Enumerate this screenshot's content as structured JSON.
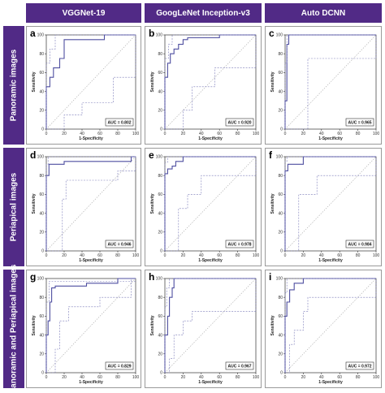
{
  "columns": [
    "VGGNet-19",
    "GoogLeNet Inception-v3",
    "Auto DCNN"
  ],
  "rows": [
    "Panoramic images",
    "Periapical images",
    "Panoramic and Periapical images"
  ],
  "colors": {
    "header_bg": "#512a86",
    "roc": "#4f4fa0",
    "ci": "#7a7ab8",
    "diagonal": "#aaaaaa"
  },
  "chart_data": [
    {
      "type": "line",
      "panel": "a",
      "xlabel": "1-Specificity",
      "ylabel": "Sensitivity",
      "xlim": [
        0,
        100
      ],
      "ylim": [
        0,
        100
      ],
      "xticks": [
        0,
        20,
        40,
        60,
        80,
        100
      ],
      "yticks": [
        0,
        20,
        40,
        60,
        80,
        100
      ],
      "auc_label": "AUC = 0.802",
      "series": [
        {
          "role": "roc",
          "x": [
            0,
            0,
            4,
            4,
            8,
            8,
            15,
            15,
            20,
            20,
            65,
            65,
            100
          ],
          "y": [
            0,
            45,
            45,
            55,
            55,
            65,
            65,
            75,
            75,
            95,
            95,
            100,
            100
          ]
        },
        {
          "role": "ci_upper",
          "x": [
            0,
            0,
            4,
            4,
            10,
            10,
            100
          ],
          "y": [
            0,
            70,
            70,
            85,
            85,
            100,
            100
          ]
        },
        {
          "role": "ci_lower",
          "x": [
            0,
            20,
            20,
            40,
            40,
            75,
            75,
            100,
            100
          ],
          "y": [
            0,
            0,
            15,
            15,
            28,
            28,
            55,
            55,
            100
          ]
        }
      ]
    },
    {
      "type": "line",
      "panel": "b",
      "xlabel": "1-Specificity",
      "ylabel": "Sensitivity",
      "xlim": [
        0,
        100
      ],
      "ylim": [
        0,
        100
      ],
      "xticks": [
        0,
        20,
        40,
        60,
        80,
        100
      ],
      "yticks": [
        0,
        20,
        40,
        60,
        80,
        100
      ],
      "auc_label": "AUC = 0.920",
      "series": [
        {
          "role": "roc",
          "x": [
            0,
            0,
            3,
            3,
            6,
            6,
            10,
            10,
            15,
            15,
            20,
            20,
            25,
            25,
            60,
            60,
            100
          ],
          "y": [
            0,
            55,
            55,
            70,
            70,
            80,
            80,
            85,
            85,
            90,
            90,
            95,
            95,
            97,
            97,
            100,
            100
          ]
        },
        {
          "role": "ci_upper",
          "x": [
            0,
            0,
            4,
            4,
            8,
            8,
            100
          ],
          "y": [
            0,
            75,
            75,
            90,
            90,
            100,
            100
          ]
        },
        {
          "role": "ci_lower",
          "x": [
            0,
            20,
            20,
            30,
            30,
            55,
            55,
            100,
            100
          ],
          "y": [
            0,
            0,
            20,
            20,
            45,
            45,
            65,
            65,
            100
          ]
        }
      ]
    },
    {
      "type": "line",
      "panel": "c",
      "xlabel": "1-Specificity",
      "ylabel": "Sensitivity",
      "xlim": [
        0,
        100
      ],
      "ylim": [
        0,
        100
      ],
      "xticks": [
        0,
        20,
        40,
        60,
        80,
        100
      ],
      "yticks": [
        0,
        20,
        40,
        60,
        80,
        100
      ],
      "auc_label": "AUC = 0.965",
      "series": [
        {
          "role": "roc",
          "x": [
            0,
            0,
            2,
            2,
            4,
            4,
            100
          ],
          "y": [
            0,
            30,
            30,
            90,
            90,
            100,
            100
          ]
        },
        {
          "role": "ci_upper",
          "x": [
            0,
            0,
            2,
            2,
            100
          ],
          "y": [
            0,
            70,
            70,
            100,
            100
          ]
        },
        {
          "role": "ci_lower",
          "x": [
            0,
            25,
            25,
            100,
            100
          ],
          "y": [
            0,
            0,
            75,
            75,
            100
          ]
        }
      ]
    },
    {
      "type": "line",
      "panel": "d",
      "xlabel": "1-Specificity",
      "ylabel": "Sensitivity",
      "xlim": [
        0,
        100
      ],
      "ylim": [
        0,
        100
      ],
      "xticks": [
        0,
        20,
        40,
        60,
        80,
        100
      ],
      "yticks": [
        0,
        20,
        40,
        60,
        80,
        100
      ],
      "auc_label": "AUC = 0.946",
      "series": [
        {
          "role": "roc",
          "x": [
            0,
            0,
            3,
            3,
            20,
            20,
            95,
            95,
            100
          ],
          "y": [
            0,
            80,
            80,
            92,
            92,
            95,
            95,
            100,
            100
          ]
        },
        {
          "role": "ci_upper",
          "x": [
            0,
            0,
            2,
            2,
            100
          ],
          "y": [
            0,
            92,
            92,
            100,
            100
          ]
        },
        {
          "role": "ci_lower",
          "x": [
            0,
            18,
            18,
            22,
            22,
            80,
            80,
            100,
            100
          ],
          "y": [
            0,
            0,
            55,
            55,
            75,
            75,
            85,
            85,
            100
          ]
        }
      ]
    },
    {
      "type": "line",
      "panel": "e",
      "xlabel": "1-Specificity",
      "ylabel": "Sensitivity",
      "xlim": [
        0,
        100
      ],
      "ylim": [
        0,
        100
      ],
      "xticks": [
        0,
        20,
        40,
        60,
        80,
        100
      ],
      "yticks": [
        0,
        20,
        40,
        60,
        80,
        100
      ],
      "auc_label": "AUC = 0.978",
      "series": [
        {
          "role": "roc",
          "x": [
            0,
            0,
            3,
            3,
            8,
            8,
            12,
            12,
            20,
            20,
            100
          ],
          "y": [
            0,
            82,
            82,
            87,
            87,
            90,
            90,
            95,
            95,
            100,
            100
          ]
        },
        {
          "role": "ci_upper",
          "x": [
            0,
            0,
            3,
            3,
            100
          ],
          "y": [
            0,
            94,
            94,
            100,
            100
          ]
        },
        {
          "role": "ci_lower",
          "x": [
            0,
            15,
            15,
            25,
            25,
            40,
            40,
            100,
            100
          ],
          "y": [
            0,
            0,
            45,
            45,
            60,
            60,
            80,
            80,
            100
          ]
        }
      ]
    },
    {
      "type": "line",
      "panel": "f",
      "xlabel": "1-Specificity",
      "ylabel": "Sensitivity",
      "xlim": [
        0,
        100
      ],
      "ylim": [
        0,
        100
      ],
      "xticks": [
        0,
        20,
        40,
        60,
        80,
        100
      ],
      "yticks": [
        0,
        20,
        40,
        60,
        80,
        100
      ],
      "auc_label": "AUC = 0.984",
      "series": [
        {
          "role": "roc",
          "x": [
            0,
            0,
            3,
            3,
            20,
            20,
            100
          ],
          "y": [
            0,
            85,
            85,
            92,
            92,
            100,
            100
          ]
        },
        {
          "role": "ci_upper",
          "x": [
            0,
            0,
            2,
            2,
            100
          ],
          "y": [
            0,
            95,
            95,
            100,
            100
          ]
        },
        {
          "role": "ci_lower",
          "x": [
            0,
            15,
            15,
            35,
            35,
            100,
            100
          ],
          "y": [
            0,
            0,
            60,
            60,
            80,
            80,
            100
          ]
        }
      ]
    },
    {
      "type": "line",
      "panel": "g",
      "xlabel": "1-Specificity",
      "ylabel": "Sensitivity",
      "xlim": [
        0,
        100
      ],
      "ylim": [
        0,
        100
      ],
      "xticks": [
        0,
        20,
        40,
        60,
        80,
        100
      ],
      "yticks": [
        0,
        20,
        40,
        60,
        80,
        100
      ],
      "auc_label": "AUC = 0.829",
      "series": [
        {
          "role": "roc",
          "x": [
            0,
            0,
            2,
            2,
            4,
            4,
            6,
            6,
            10,
            10,
            45,
            45,
            80,
            80,
            100
          ],
          "y": [
            0,
            40,
            40,
            55,
            55,
            75,
            75,
            90,
            90,
            92,
            92,
            95,
            95,
            100,
            100
          ]
        },
        {
          "role": "ci_upper",
          "x": [
            0,
            0,
            3,
            3,
            100
          ],
          "y": [
            0,
            75,
            75,
            97,
            97
          ]
        },
        {
          "role": "ci_lower",
          "x": [
            0,
            10,
            10,
            15,
            15,
            25,
            25,
            60,
            60,
            95,
            95
          ],
          "y": [
            0,
            0,
            25,
            25,
            55,
            55,
            70,
            70,
            80,
            80,
            100
          ]
        }
      ]
    },
    {
      "type": "line",
      "panel": "h",
      "xlabel": "1-Specificity",
      "ylabel": "Sensitivity",
      "xlim": [
        0,
        100
      ],
      "ylim": [
        0,
        100
      ],
      "xticks": [
        0,
        20,
        40,
        60,
        80,
        100
      ],
      "yticks": [
        0,
        20,
        40,
        60,
        80,
        100
      ],
      "auc_label": "AUC = 0.967",
      "series": [
        {
          "role": "roc",
          "x": [
            0,
            0,
            3,
            3,
            5,
            5,
            8,
            8,
            10,
            10,
            100
          ],
          "y": [
            0,
            40,
            40,
            60,
            60,
            80,
            80,
            90,
            90,
            100,
            100
          ]
        },
        {
          "role": "ci_upper",
          "x": [
            0,
            0,
            2,
            2,
            5,
            5,
            100
          ],
          "y": [
            0,
            70,
            70,
            90,
            90,
            100,
            100
          ]
        },
        {
          "role": "ci_lower",
          "x": [
            0,
            5,
            5,
            10,
            10,
            20,
            20,
            30,
            30,
            100,
            100
          ],
          "y": [
            0,
            0,
            15,
            15,
            40,
            40,
            55,
            55,
            65,
            65,
            100
          ]
        }
      ]
    },
    {
      "type": "line",
      "panel": "i",
      "xlabel": "1-Specificity",
      "ylabel": "Sensitivity",
      "xlim": [
        0,
        100
      ],
      "ylim": [
        0,
        100
      ],
      "xticks": [
        0,
        20,
        40,
        60,
        80,
        100
      ],
      "yticks": [
        0,
        20,
        40,
        60,
        80,
        100
      ],
      "auc_label": "AUC = 0.972",
      "series": [
        {
          "role": "roc",
          "x": [
            0,
            0,
            2,
            2,
            5,
            5,
            10,
            10,
            20,
            20,
            100
          ],
          "y": [
            0,
            60,
            60,
            75,
            75,
            88,
            88,
            95,
            95,
            100,
            100
          ]
        },
        {
          "role": "ci_upper",
          "x": [
            0,
            0,
            2,
            2,
            100
          ],
          "y": [
            0,
            85,
            85,
            100,
            100
          ]
        },
        {
          "role": "ci_lower",
          "x": [
            0,
            5,
            5,
            10,
            10,
            20,
            20,
            25,
            25,
            100,
            100
          ],
          "y": [
            0,
            0,
            30,
            30,
            45,
            45,
            65,
            65,
            80,
            80,
            100
          ]
        }
      ]
    }
  ]
}
